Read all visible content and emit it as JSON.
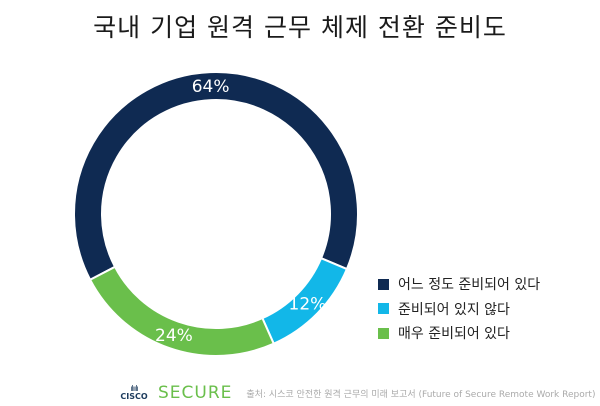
{
  "chart_data": {
    "type": "pie",
    "title": "국내 기업 원격 근무 체제 전환 준비도",
    "donut": true,
    "legend_position": "right",
    "slices": [
      {
        "label": "어느 정도 준비되어 있다",
        "value": 64,
        "data_label": "64%",
        "color": "#0f2a52"
      },
      {
        "label": "준비되어 있지 않다",
        "value": 12,
        "data_label": "12%",
        "color": "#12b7e8"
      },
      {
        "label": "매우 준비되어 있다",
        "value": 24,
        "data_label": "24%",
        "color": "#6abf4b"
      }
    ]
  },
  "footer": {
    "logo": "cisco",
    "brand": "SECURE",
    "source": "출처: 시스코 안전한 원격 근무의 미래 보고서 (Future of Secure Remote Work Report)"
  }
}
